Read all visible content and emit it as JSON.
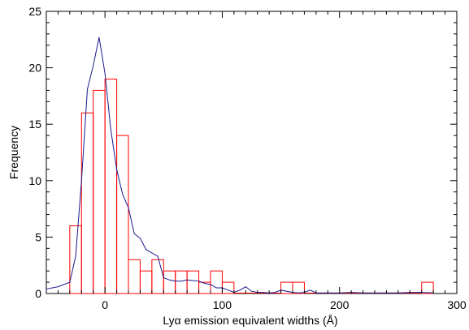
{
  "chart_data": {
    "type": "bar",
    "title": "",
    "xlabel": "Lyα emission equivalent widths (Å)",
    "ylabel": "Frequency",
    "xlim": [
      -50,
      300
    ],
    "ylim": [
      0,
      25
    ],
    "x_ticks": [
      0,
      100,
      200,
      300
    ],
    "y_ticks": [
      0,
      5,
      10,
      15,
      20,
      25
    ],
    "grid": false,
    "bin_width": 10,
    "histogram": {
      "color": "#ff0000",
      "bins": [
        {
          "x0": -30,
          "x1": -20,
          "count": 6
        },
        {
          "x0": -20,
          "x1": -10,
          "count": 16
        },
        {
          "x0": -10,
          "x1": 0,
          "count": 18
        },
        {
          "x0": 0,
          "x1": 10,
          "count": 19
        },
        {
          "x0": 10,
          "x1": 20,
          "count": 14
        },
        {
          "x0": 20,
          "x1": 30,
          "count": 3
        },
        {
          "x0": 30,
          "x1": 40,
          "count": 2
        },
        {
          "x0": 40,
          "x1": 50,
          "count": 3
        },
        {
          "x0": 50,
          "x1": 60,
          "count": 2
        },
        {
          "x0": 60,
          "x1": 70,
          "count": 2
        },
        {
          "x0": 70,
          "x1": 80,
          "count": 2
        },
        {
          "x0": 80,
          "x1": 90,
          "count": 1
        },
        {
          "x0": 90,
          "x1": 100,
          "count": 2
        },
        {
          "x0": 100,
          "x1": 110,
          "count": 1
        },
        {
          "x0": 110,
          "x1": 120,
          "count": 0
        },
        {
          "x0": 120,
          "x1": 130,
          "count": 0
        },
        {
          "x0": 130,
          "x1": 140,
          "count": 0
        },
        {
          "x0": 140,
          "x1": 150,
          "count": 0
        },
        {
          "x0": 150,
          "x1": 160,
          "count": 1
        },
        {
          "x0": 160,
          "x1": 170,
          "count": 1
        },
        {
          "x0": 170,
          "x1": 270,
          "count": 0
        },
        {
          "x0": 270,
          "x1": 280,
          "count": 1
        }
      ]
    },
    "curve": {
      "color": "#1a1a8c",
      "x": [
        -50,
        -40,
        -30,
        -25,
        -20,
        -15,
        -10,
        -5,
        0,
        5,
        10,
        15,
        20,
        25,
        30,
        35,
        40,
        45,
        50,
        55,
        60,
        65,
        70,
        75,
        80,
        85,
        90,
        95,
        100,
        105,
        110,
        115,
        120,
        125,
        130,
        135,
        140,
        145,
        150,
        155,
        160,
        165,
        170,
        175,
        180,
        190,
        200,
        210,
        220,
        230,
        240,
        250,
        260,
        270,
        280
      ],
      "y": [
        0.4,
        0.6,
        1.0,
        3.3,
        10,
        18.1,
        20.2,
        22.7,
        19.5,
        14.5,
        11,
        8.8,
        7.6,
        5.3,
        4.9,
        3.9,
        3.6,
        3.3,
        1.4,
        1.2,
        1.1,
        1.1,
        1.2,
        1.15,
        1.1,
        0.9,
        0.8,
        0.5,
        0.5,
        0.3,
        0.1,
        0.3,
        0.6,
        0.2,
        0.1,
        0.1,
        0.05,
        0.1,
        0.3,
        0.2,
        0.1,
        0.05,
        0.1,
        0.3,
        0.05,
        0.05,
        0.05,
        0.1,
        0.05,
        0.05,
        0.05,
        0.05,
        0.1,
        0.1,
        0.05
      ]
    }
  }
}
